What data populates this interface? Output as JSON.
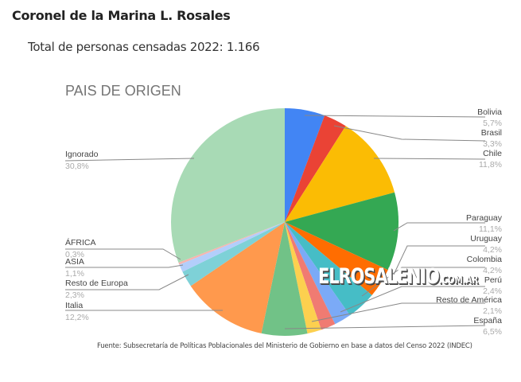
{
  "header": {
    "title": "Coronel de la Marina L. Rosales",
    "subtitle": "Total de personas censadas 2022: 1.166"
  },
  "watermark": {
    "main": "ELROSALENIO",
    "suffix": ".COM.AR"
  },
  "source": "Fuente: Subsecretaría de Políticas Poblacionales del Ministerio de Gobierno en base a datos del Censo 2022 (INDEC)",
  "chart_data": {
    "type": "pie",
    "title": "PAIS DE ORIGEN",
    "start_angle_deg": 0,
    "direction": "clockwise",
    "slices": [
      {
        "label": "Bolivia",
        "pct_label": "5,7%",
        "value": 5.7,
        "color": "#4285F4"
      },
      {
        "label": "Brasil",
        "pct_label": "3,3%",
        "value": 3.3,
        "color": "#EA4335"
      },
      {
        "label": "Chile",
        "pct_label": "11,8%",
        "value": 11.8,
        "color": "#FBBC04"
      },
      {
        "label": "Paraguay",
        "pct_label": "11,1%",
        "value": 11.1,
        "color": "#34A853"
      },
      {
        "label": "Uruguay",
        "pct_label": "4,2%",
        "value": 4.2,
        "color": "#FF6D01"
      },
      {
        "label": "Colombia",
        "pct_label": "4,2%",
        "value": 4.2,
        "color": "#46BDC6"
      },
      {
        "label": "Perú",
        "pct_label": "2,4%",
        "value": 2.4,
        "color": "#7BAAF7"
      },
      {
        "label": "Resto de América",
        "pct_label": "2,1%",
        "value": 2.1,
        "color": "#F07B72"
      },
      {
        "label": "",
        "pct_label": "",
        "value": 2.0,
        "color": "#FCD04F"
      },
      {
        "label": "España",
        "pct_label": "6,5%",
        "value": 6.5,
        "color": "#71C287"
      },
      {
        "label": "Italia",
        "pct_label": "12,2%",
        "value": 12.2,
        "color": "#FF994D"
      },
      {
        "label": "Resto de Europa",
        "pct_label": "2,3%",
        "value": 2.3,
        "color": "#7ED1D7"
      },
      {
        "label": "ASIA",
        "pct_label": "1,1%",
        "value": 1.1,
        "color": "#B3CEFB"
      },
      {
        "label": "ÁFRICA",
        "pct_label": "0,3%",
        "value": 0.3,
        "color": "#F7B4AE"
      },
      {
        "label": "Ignorado",
        "pct_label": "30,8%",
        "value": 30.8,
        "color": "#A8DAB5"
      }
    ]
  },
  "labels": {
    "bolivia": {
      "name": "Bolivia",
      "pct": "5,7%"
    },
    "brasil": {
      "name": "Brasil",
      "pct": "3,3%"
    },
    "chile": {
      "name": "Chile",
      "pct": "11,8%"
    },
    "paraguay": {
      "name": "Paraguay",
      "pct": "11,1%"
    },
    "uruguay": {
      "name": "Uruguay",
      "pct": "4,2%"
    },
    "colombia": {
      "name": "Colombia",
      "pct": "4,2%"
    },
    "peru": {
      "name": "Perú",
      "pct": "2,4%"
    },
    "resto_america": {
      "name": "Resto de América",
      "pct": "2,1%"
    },
    "espana": {
      "name": "España",
      "pct": "6,5%"
    },
    "italia": {
      "name": "Italia",
      "pct": "12,2%"
    },
    "resto_europa": {
      "name": "Resto de Europa",
      "pct": "2,3%"
    },
    "asia": {
      "name": "ASIA",
      "pct": "1,1%"
    },
    "africa": {
      "name": "ÁFRICA",
      "pct": "0,3%"
    },
    "ignorado": {
      "name": "Ignorado",
      "pct": "30,8%"
    }
  }
}
